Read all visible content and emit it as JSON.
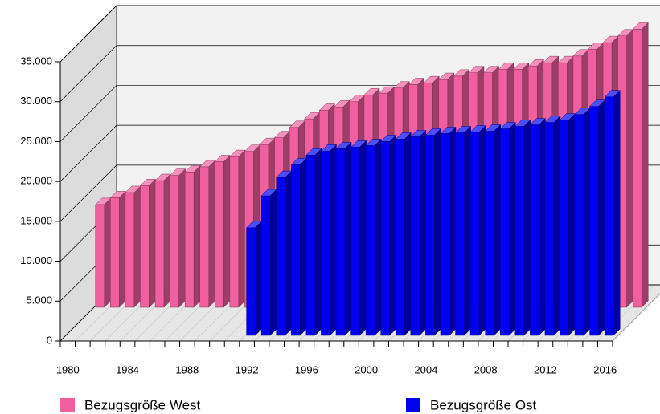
{
  "chart_data": {
    "type": "bar3d",
    "categories": [
      "1980",
      null,
      null,
      null,
      "1984",
      null,
      null,
      null,
      "1988",
      null,
      null,
      null,
      "1992",
      null,
      null,
      null,
      "1996",
      null,
      null,
      null,
      "2000",
      null,
      null,
      null,
      "2004",
      null,
      null,
      null,
      "2008",
      null,
      null,
      null,
      "2012",
      null,
      null,
      null,
      "2016"
    ],
    "series": [
      {
        "name": "Bezugsgröße West",
        "color": "#f0609f",
        "values": [
          12885,
          13744,
          14388,
          15247,
          15891,
          16535,
          16965,
          17609,
          18253,
          18897,
          19542,
          20401,
          21260,
          22548,
          23622,
          24696,
          25125,
          25769,
          26628,
          26843,
          27487,
          27917,
          28140,
          28560,
          28980,
          29400,
          29400,
          29820,
          29820,
          30240,
          30660,
          30660,
          31500,
          32340,
          33180,
          34020,
          34860
        ]
      },
      {
        "name": "Bezugsgröße Ost",
        "color": "#0000f0",
        "values": [
          null,
          null,
          null,
          null,
          null,
          null,
          null,
          null,
          null,
          null,
          null,
          null,
          13500,
          17500,
          19800,
          21400,
          22600,
          23100,
          23400,
          23600,
          23800,
          24300,
          24600,
          24900,
          25100,
          25300,
          25400,
          25500,
          25600,
          25900,
          26200,
          26400,
          26700,
          27000,
          27700,
          28700,
          29900
        ]
      }
    ],
    "ylim": [
      0,
      35000
    ],
    "yticks": [
      0,
      {
        "value": 5000,
        "label": "5.000"
      },
      {
        "value": 10000,
        "label": "10.000"
      },
      {
        "value": 15000,
        "label": "15.000"
      },
      {
        "value": 20000,
        "label": "20.000"
      },
      {
        "value": 25000,
        "label": "25.000"
      },
      {
        "value": 30000,
        "label": "30.000"
      },
      {
        "value": 35000,
        "label": "35.000"
      }
    ],
    "grid": true
  }
}
